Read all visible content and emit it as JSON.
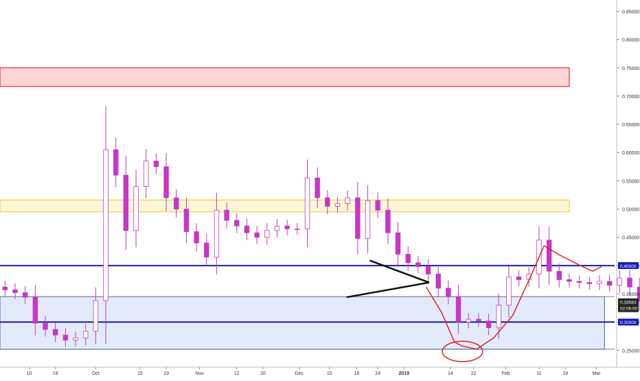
{
  "chart_data": {
    "type": "candlestick",
    "title": "",
    "xlabel": "",
    "ylabel": "",
    "ylim": [
      0.22,
      0.87
    ],
    "y_ticks": [
      0.25,
      0.3,
      0.35,
      0.4,
      0.45,
      0.5,
      0.55,
      0.6,
      0.65,
      0.7,
      0.75,
      0.8,
      0.85
    ],
    "y_tick_labels": [
      "0.25000",
      "0.30000",
      "0.35000",
      "0.40000",
      "0.45000",
      "0.50000",
      "0.55000",
      "0.60000",
      "0.65000",
      "0.70000",
      "0.75000",
      "0.80000",
      "0.85000"
    ],
    "x_ticks": [
      {
        "label": "10",
        "bold": false
      },
      {
        "label": "18",
        "bold": false
      },
      {
        "label": "Oct",
        "bold": false
      },
      {
        "label": "15",
        "bold": false
      },
      {
        "label": "23",
        "bold": false
      },
      {
        "label": "Nov",
        "bold": false
      },
      {
        "label": "12",
        "bold": false
      },
      {
        "label": "20",
        "bold": false
      },
      {
        "label": "Dec",
        "bold": false
      },
      {
        "label": "10",
        "bold": false
      },
      {
        "label": "18",
        "bold": false
      },
      {
        "label": "24",
        "bold": false
      },
      {
        "label": "2019",
        "bold": true
      },
      {
        "label": "14",
        "bold": false
      },
      {
        "label": "22",
        "bold": false
      },
      {
        "label": "Feb",
        "bold": false
      },
      {
        "label": "11",
        "bold": false
      },
      {
        "label": "19",
        "bold": false
      },
      {
        "label": "Mar",
        "bold": false
      }
    ],
    "x_tick_index": [
      2.4,
      5,
      9,
      13.4,
      16,
      19.3,
      23,
      25.6,
      29.2,
      32.2,
      34.9,
      37,
      39.6,
      44.2,
      46.5,
      49.7,
      53,
      55.6,
      58.7
    ],
    "close_series": [
      0.357,
      0.352,
      0.344,
      0.298,
      0.287,
      0.277,
      0.268,
      0.272,
      0.284,
      0.338,
      0.605,
      0.56,
      0.462,
      0.54,
      0.585,
      0.575,
      0.52,
      0.5,
      0.46,
      0.44,
      0.415,
      0.498,
      0.48,
      0.47,
      0.458,
      0.45,
      0.462,
      0.47,
      0.465,
      0.465,
      0.555,
      0.52,
      0.505,
      0.51,
      0.52,
      0.448,
      0.515,
      0.498,
      0.458,
      0.42,
      0.405,
      0.398,
      0.385,
      0.36,
      0.345,
      0.3,
      0.305,
      0.302,
      0.29,
      0.33,
      0.38,
      0.375,
      0.385,
      0.445,
      0.39,
      0.375,
      0.372,
      0.37,
      0.368,
      0.372,
      0.365,
      0.378,
      0.362,
      0.337
    ],
    "series": [
      {
        "name": "",
        "style": "candles",
        "color": "#cc33cc"
      }
    ],
    "last_price": {
      "value": 0.33583,
      "label": "0.33583",
      "countdown": "02:06:50"
    },
    "horizontal_lines": [
      {
        "value": 0.4,
        "label": "0.40000",
        "color": "#1a1ab8"
      },
      {
        "value": 0.3,
        "label": "0.30000",
        "color": "#1a1ab8"
      },
      {
        "value": 0.252,
        "label": "",
        "color": "#5577cc"
      },
      {
        "value": 0.345,
        "label": "",
        "color": "#888888"
      }
    ],
    "zones": [
      {
        "name": "resistance-high",
        "y_from": 0.717,
        "y_to": 0.75,
        "x_from_index": 0,
        "x_to_index": 56.5,
        "fill": "#ffd6d6",
        "stroke": "#e03030"
      },
      {
        "name": "resistance-mid",
        "y_from": 0.495,
        "y_to": 0.516,
        "x_from_index": 0,
        "x_to_index": 56.5,
        "fill": "#fff6d9",
        "stroke": "#f2d23a"
      },
      {
        "name": "support",
        "y_from": 0.252,
        "y_to": 0.345,
        "x_from_index": 0,
        "x_to_index": 60,
        "fill": "#e3ebfa",
        "stroke": "#5577cc"
      }
    ],
    "triangle": {
      "apex": {
        "x_index": 42.1,
        "value": 0.37
      },
      "upper": {
        "x_index": 36.2,
        "value": 0.409
      },
      "lower": {
        "x_index": 33.9,
        "value": 0.344
      }
    },
    "projection": [
      {
        "x_index": 41.8,
        "value": 0.362
      },
      {
        "x_index": 43.3,
        "value": 0.318
      },
      {
        "x_index": 44.6,
        "value": 0.265
      },
      {
        "x_index": 45.3,
        "value": 0.258
      },
      {
        "x_index": 46.8,
        "value": 0.252
      },
      {
        "x_index": 48.5,
        "value": 0.272
      },
      {
        "x_index": 50.4,
        "value": 0.312
      },
      {
        "x_index": 52.2,
        "value": 0.382
      },
      {
        "x_index": 53.5,
        "value": 0.435
      },
      {
        "x_index": 55.1,
        "value": 0.418
      },
      {
        "x_index": 57.1,
        "value": 0.4
      },
      {
        "x_index": 58.3,
        "value": 0.39
      },
      {
        "x_index": 59.2,
        "value": 0.398
      }
    ],
    "ellipse": {
      "cx_index": 45.4,
      "cy_value": 0.248,
      "rx_index": 2.0,
      "ry_value": 0.018
    },
    "grid": false,
    "legend": "none"
  }
}
